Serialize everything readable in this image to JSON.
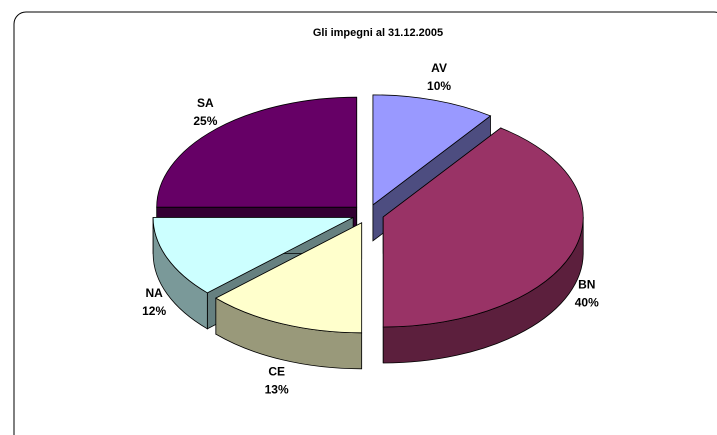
{
  "chart_data": {
    "type": "pie3d",
    "title": "Gli impegni al 31.12.2005",
    "categories": [
      "AV",
      "BN",
      "CE",
      "NA",
      "SA"
    ],
    "values": [
      10,
      40,
      13,
      12,
      25
    ],
    "value_labels": [
      "10%",
      "40%",
      "13%",
      "12%",
      "25%"
    ],
    "colors": [
      "#9999ff",
      "#993366",
      "#ffffcc",
      "#ccffff",
      "#660066"
    ]
  }
}
